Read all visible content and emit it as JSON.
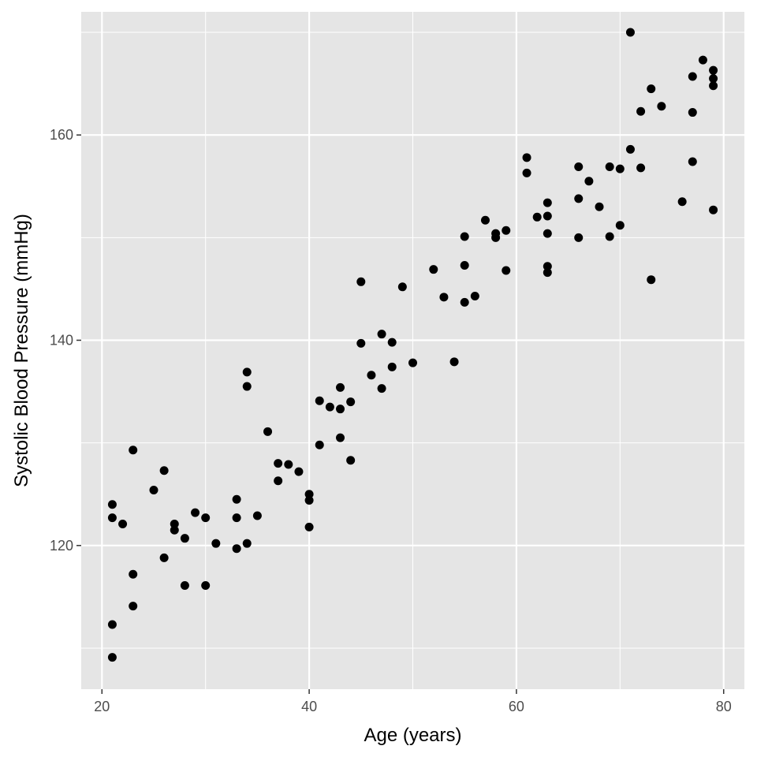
{
  "chart_data": {
    "type": "scatter",
    "xlabel": "Age (years)",
    "ylabel": "Systolic Blood Pressure (mmHg)",
    "xlim": [
      18,
      82
    ],
    "ylim": [
      106,
      172
    ],
    "x_ticks": [
      20,
      40,
      60,
      80
    ],
    "x_minor_ticks": [
      30,
      50,
      70
    ],
    "y_ticks": [
      120,
      140,
      160
    ],
    "y_minor_ticks": [
      110,
      130,
      150,
      170
    ],
    "grid": true,
    "colors": {
      "panel": "#e5e5e5",
      "grid": "#ffffff",
      "point": "#000000",
      "tick_text": "#4d4d4d",
      "tick_mark": "#333333"
    },
    "x": [
      71,
      78,
      79,
      79,
      77,
      79,
      73,
      74,
      72,
      77,
      61,
      71,
      77,
      72,
      70,
      69,
      66,
      61,
      67,
      63,
      66,
      76,
      68,
      63,
      79,
      62,
      63,
      55,
      57,
      58,
      59,
      58,
      63,
      66,
      69,
      70,
      55,
      63,
      52,
      59,
      73,
      45,
      49,
      56,
      53,
      55,
      54,
      47,
      48,
      45,
      50,
      48,
      46,
      47,
      43,
      34,
      34,
      41,
      44,
      42,
      43,
      36,
      43,
      41,
      37,
      38,
      44,
      39,
      23,
      26,
      37,
      25,
      33,
      40,
      40,
      21,
      35,
      29,
      22,
      30,
      33,
      27,
      40,
      21,
      27,
      28,
      31,
      34,
      33,
      26,
      23,
      28,
      30,
      23,
      21,
      21
    ],
    "y": [
      170,
      167.3,
      166.3,
      165.5,
      165.7,
      164.8,
      164.5,
      162.8,
      162.3,
      162.2,
      157.8,
      158.6,
      157.4,
      156.8,
      156.7,
      156.9,
      156.9,
      156.3,
      155.5,
      153.4,
      153.8,
      153.5,
      153,
      152.1,
      152.7,
      152,
      150.4,
      150.1,
      151.7,
      150.4,
      150.7,
      150,
      147.2,
      150,
      150.1,
      151.2,
      147.3,
      146.6,
      146.9,
      146.8,
      145.9,
      145.7,
      145.2,
      144.3,
      144.2,
      143.7,
      137.9,
      140.6,
      139.8,
      139.7,
      137.8,
      137.4,
      136.6,
      135.3,
      135.4,
      136.9,
      135.5,
      134.1,
      134,
      133.5,
      133.3,
      131.1,
      130.5,
      129.8,
      128,
      127.9,
      128.3,
      127.2,
      129.3,
      127.3,
      126.3,
      125.4,
      124.5,
      125,
      124.4,
      124,
      122.9,
      123.2,
      122.1,
      122.7,
      122.7,
      122.1,
      121.8,
      122.7,
      121.5,
      120.7,
      120.2,
      120.2,
      119.7,
      118.8,
      117.2,
      116.1,
      116.1,
      114.1,
      112.3,
      109.1
    ]
  }
}
